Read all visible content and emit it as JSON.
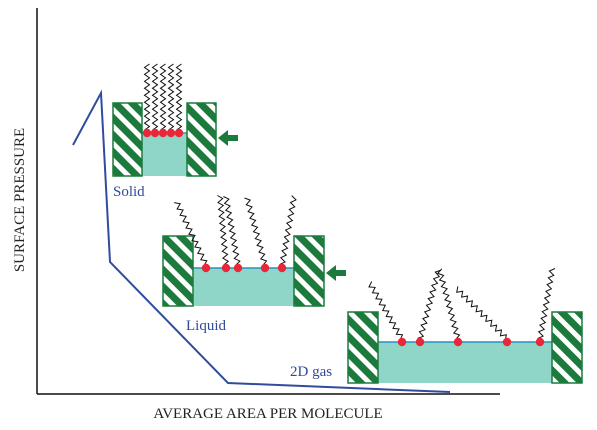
{
  "axes": {
    "y_label": "SURFACE PRESSURE",
    "x_label": "AVERAGE AREA PER MOLECULE"
  },
  "phases": [
    {
      "label": "Solid"
    },
    {
      "label": "Liquid"
    },
    {
      "label": "2D gas"
    }
  ]
}
